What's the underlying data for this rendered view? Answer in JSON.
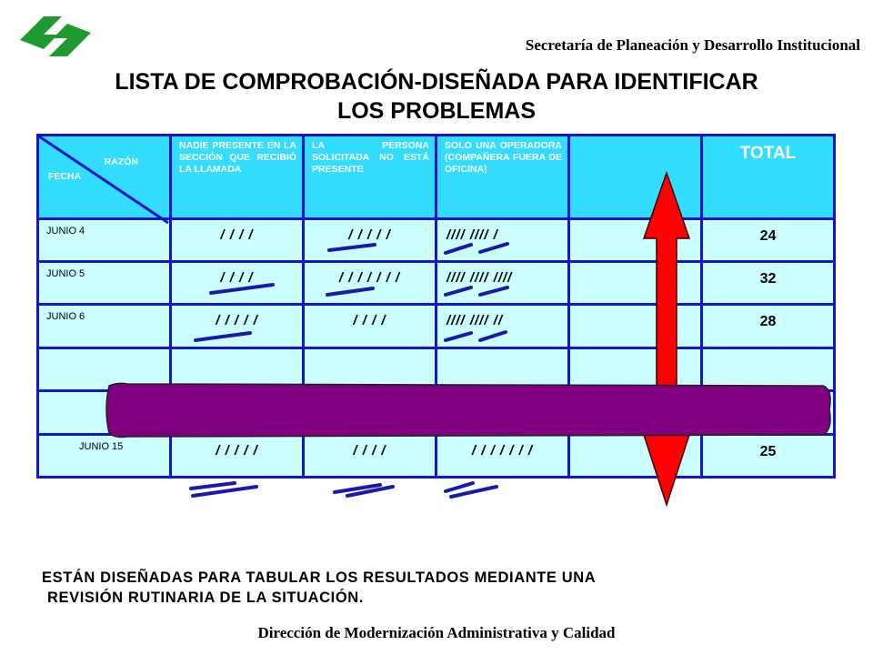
{
  "header": {
    "organization": "Secretaría de Planeación y Desarrollo Institucional",
    "title_line1": "LISTA DE COMPROBACIÓN-DISEÑADA PARA IDENTIFICAR",
    "title_line2": "LOS PROBLEMAS"
  },
  "table": {
    "corner_top": "RAZÓN",
    "corner_bottom": "FECHA",
    "columns": [
      "NADIE PRESENTE EN LA SECCIÓN QUE RECIBIÓ LA LLAMADA",
      "LA PERSONA SOLICITADA NO ESTÁ PRESENTE",
      "SOLO UNA OPERADORA (COMPAÑERA FUERA DE OFICINA)",
      ""
    ],
    "total_label": "TOTAL",
    "rows": [
      {
        "date": "JUNIO 4",
        "c1": "/ / / /",
        "c2": "/ / / /   /",
        "c3": "////  ////  /",
        "total": "24"
      },
      {
        "date": "JUNIO 5",
        "c1": "/ / / /",
        "c2": "/ / / /   / / /",
        "c3": "////  ////  ////",
        "total": "32"
      },
      {
        "date": "JUNIO 6",
        "c1": "/ / / /   /",
        "c2": "/ / / /",
        "c3": "////  ////  //",
        "total": "28"
      },
      {
        "date": "",
        "c1": "",
        "c2": "",
        "c3": "",
        "total": ""
      },
      {
        "date": "",
        "c1": "",
        "c2": "",
        "c3": "",
        "total": ""
      },
      {
        "date": "JUNIO 15",
        "c1": "/ / / /   /",
        "c2": "/ / / /",
        "c3": "/ / / /   / / /",
        "total": "25"
      }
    ]
  },
  "footer": {
    "description_line1": "ESTÁN DISEÑADAS PARA TABULAR LOS RESULTADOS MEDIANTE UNA",
    "description_line2": "REVISIÓN RUTINARIA DE LA SITUACIÓN.",
    "department": "Dirección de Modernización Administrativa y Calidad"
  },
  "colors": {
    "table_border": "#1515c8",
    "header_fill": "#33ddff",
    "cell_fill": "#ccffff",
    "arrow": "#ff0000",
    "band": "#800080",
    "tally_marks": "#1a1aa8",
    "logo": "#1e9a2e"
  },
  "icons": {
    "logo": "green-interlocking-logo",
    "arrow": "double-headed-vertical-arrow"
  }
}
